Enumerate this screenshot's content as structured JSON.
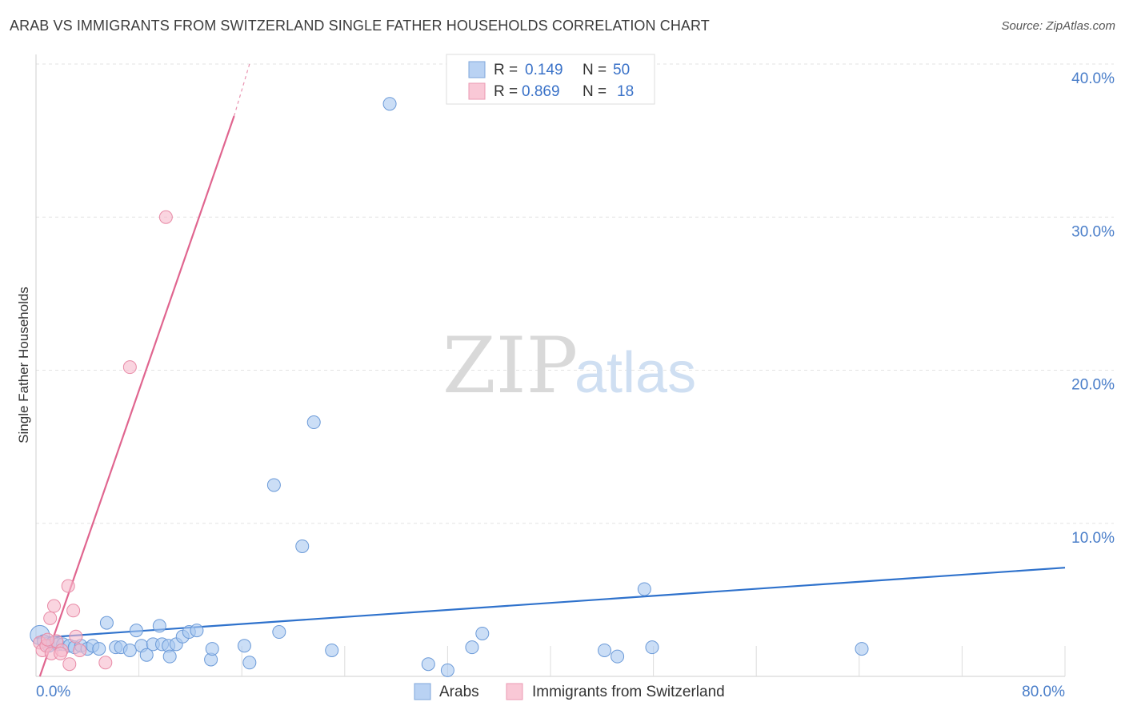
{
  "title": "ARAB VS IMMIGRANTS FROM SWITZERLAND SINGLE FATHER HOUSEHOLDS CORRELATION CHART",
  "source": "Source: ZipAtlas.com",
  "watermark": {
    "zip": "ZIP",
    "atlas": "atlas"
  },
  "colors": {
    "blue_fill": "#a9c8f0",
    "blue_stroke": "#6b9ad8",
    "blue_line": "#2f72cc",
    "pink_fill": "#f6b9cb",
    "pink_stroke": "#e88aa6",
    "pink_line": "#e0658f",
    "grid": "#e3e3e3",
    "tick_text": "#4a7ec9"
  },
  "legend": {
    "rows": [
      {
        "r_label": "R =",
        "r_value": "0.149",
        "n_label": "N =",
        "n_value": "50",
        "series": "blue"
      },
      {
        "r_label": "R =",
        "r_value": "0.869",
        "n_label": "N =",
        "n_value": "18",
        "series": "pink"
      }
    ]
  },
  "chart_data": {
    "type": "scatter",
    "title": "ARAB VS IMMIGRANTS FROM SWITZERLAND SINGLE FATHER HOUSEHOLDS CORRELATION CHART",
    "xlabel": "",
    "ylabel": "Single Father Households",
    "xlim": [
      0,
      80
    ],
    "ylim": [
      0,
      40
    ],
    "x_tick_labels": [
      {
        "value": 0,
        "label": "0.0%"
      },
      {
        "value": 80,
        "label": "80.0%"
      }
    ],
    "y_tick_labels": [
      {
        "value": 10,
        "label": "10.0%"
      },
      {
        "value": 20,
        "label": "20.0%"
      },
      {
        "value": 30,
        "label": "30.0%"
      },
      {
        "value": 40,
        "label": "40.0%"
      }
    ],
    "grid": true,
    "legend_position": "top-center",
    "series": [
      {
        "name": "Arabs",
        "color": "blue",
        "r": 0.149,
        "n": 50,
        "trend": {
          "x0": 0,
          "y0": 2.5,
          "x1": 80,
          "y1": 7.1
        },
        "points": [
          [
            0.3,
            2.7,
            2
          ],
          [
            0.6,
            2.3,
            1
          ],
          [
            1.0,
            2.0,
            1
          ],
          [
            1.3,
            2.2,
            1
          ],
          [
            1.7,
            2.1,
            1
          ],
          [
            2.1,
            2.1,
            1
          ],
          [
            2.6,
            2.0,
            1
          ],
          [
            3.0,
            1.9,
            1
          ],
          [
            3.5,
            2.0,
            1
          ],
          [
            4.0,
            1.8,
            1
          ],
          [
            4.4,
            2.0,
            1
          ],
          [
            4.9,
            1.8,
            1
          ],
          [
            5.5,
            3.5,
            1
          ],
          [
            6.2,
            1.9,
            1
          ],
          [
            6.6,
            1.9,
            1
          ],
          [
            7.3,
            1.7,
            1
          ],
          [
            7.8,
            3.0,
            1
          ],
          [
            8.2,
            2.0,
            1
          ],
          [
            8.6,
            1.4,
            1
          ],
          [
            9.1,
            2.1,
            1
          ],
          [
            9.6,
            3.3,
            1
          ],
          [
            9.8,
            2.1,
            1
          ],
          [
            10.3,
            2.0,
            1
          ],
          [
            10.4,
            1.3,
            1
          ],
          [
            10.9,
            2.1,
            1
          ],
          [
            11.4,
            2.6,
            1
          ],
          [
            11.9,
            2.9,
            1
          ],
          [
            12.5,
            3.0,
            1
          ],
          [
            13.6,
            1.1,
            1
          ],
          [
            13.7,
            1.8,
            1
          ],
          [
            16.2,
            2.0,
            1
          ],
          [
            16.6,
            0.9,
            1
          ],
          [
            18.5,
            12.5,
            1
          ],
          [
            18.9,
            2.9,
            1
          ],
          [
            20.7,
            8.5,
            1
          ],
          [
            21.6,
            16.6,
            1
          ],
          [
            23.0,
            1.7,
            1
          ],
          [
            27.5,
            37.4,
            1
          ],
          [
            30.5,
            0.8,
            1
          ],
          [
            32.0,
            0.4,
            1
          ],
          [
            33.9,
            1.9,
            1
          ],
          [
            34.7,
            2.8,
            1
          ],
          [
            44.2,
            1.7,
            1
          ],
          [
            45.2,
            1.3,
            1
          ],
          [
            47.3,
            5.7,
            1
          ],
          [
            47.9,
            1.9,
            1
          ],
          [
            64.2,
            1.8,
            1
          ]
        ]
      },
      {
        "name": "Immigrants from Switzerland",
        "color": "pink",
        "r": 0.869,
        "n": 18,
        "trend": {
          "x0": 0.3,
          "y0": 0,
          "x1": 15.4,
          "y1": 36.6,
          "dash_to_x": 16.6,
          "dash_to_y": 40
        },
        "points": [
          [
            0.3,
            2.2,
            1
          ],
          [
            0.5,
            1.7,
            1
          ],
          [
            0.8,
            2.0,
            1
          ],
          [
            1.1,
            3.8,
            1
          ],
          [
            1.2,
            1.5,
            1
          ],
          [
            1.4,
            4.6,
            1
          ],
          [
            1.6,
            2.3,
            1
          ],
          [
            2.0,
            1.7,
            1
          ],
          [
            2.5,
            5.9,
            1
          ],
          [
            2.6,
            0.8,
            1
          ],
          [
            2.9,
            4.3,
            1
          ],
          [
            3.1,
            2.6,
            1
          ],
          [
            3.4,
            1.7,
            1
          ],
          [
            5.4,
            0.9,
            1
          ],
          [
            7.3,
            20.2,
            1
          ],
          [
            10.1,
            30.0,
            1
          ],
          [
            1.9,
            1.5,
            1
          ],
          [
            0.9,
            2.4,
            1
          ]
        ]
      }
    ]
  },
  "bottom_legend": [
    {
      "label": "Arabs",
      "series": "blue"
    },
    {
      "label": "Immigrants from Switzerland",
      "series": "pink"
    }
  ]
}
